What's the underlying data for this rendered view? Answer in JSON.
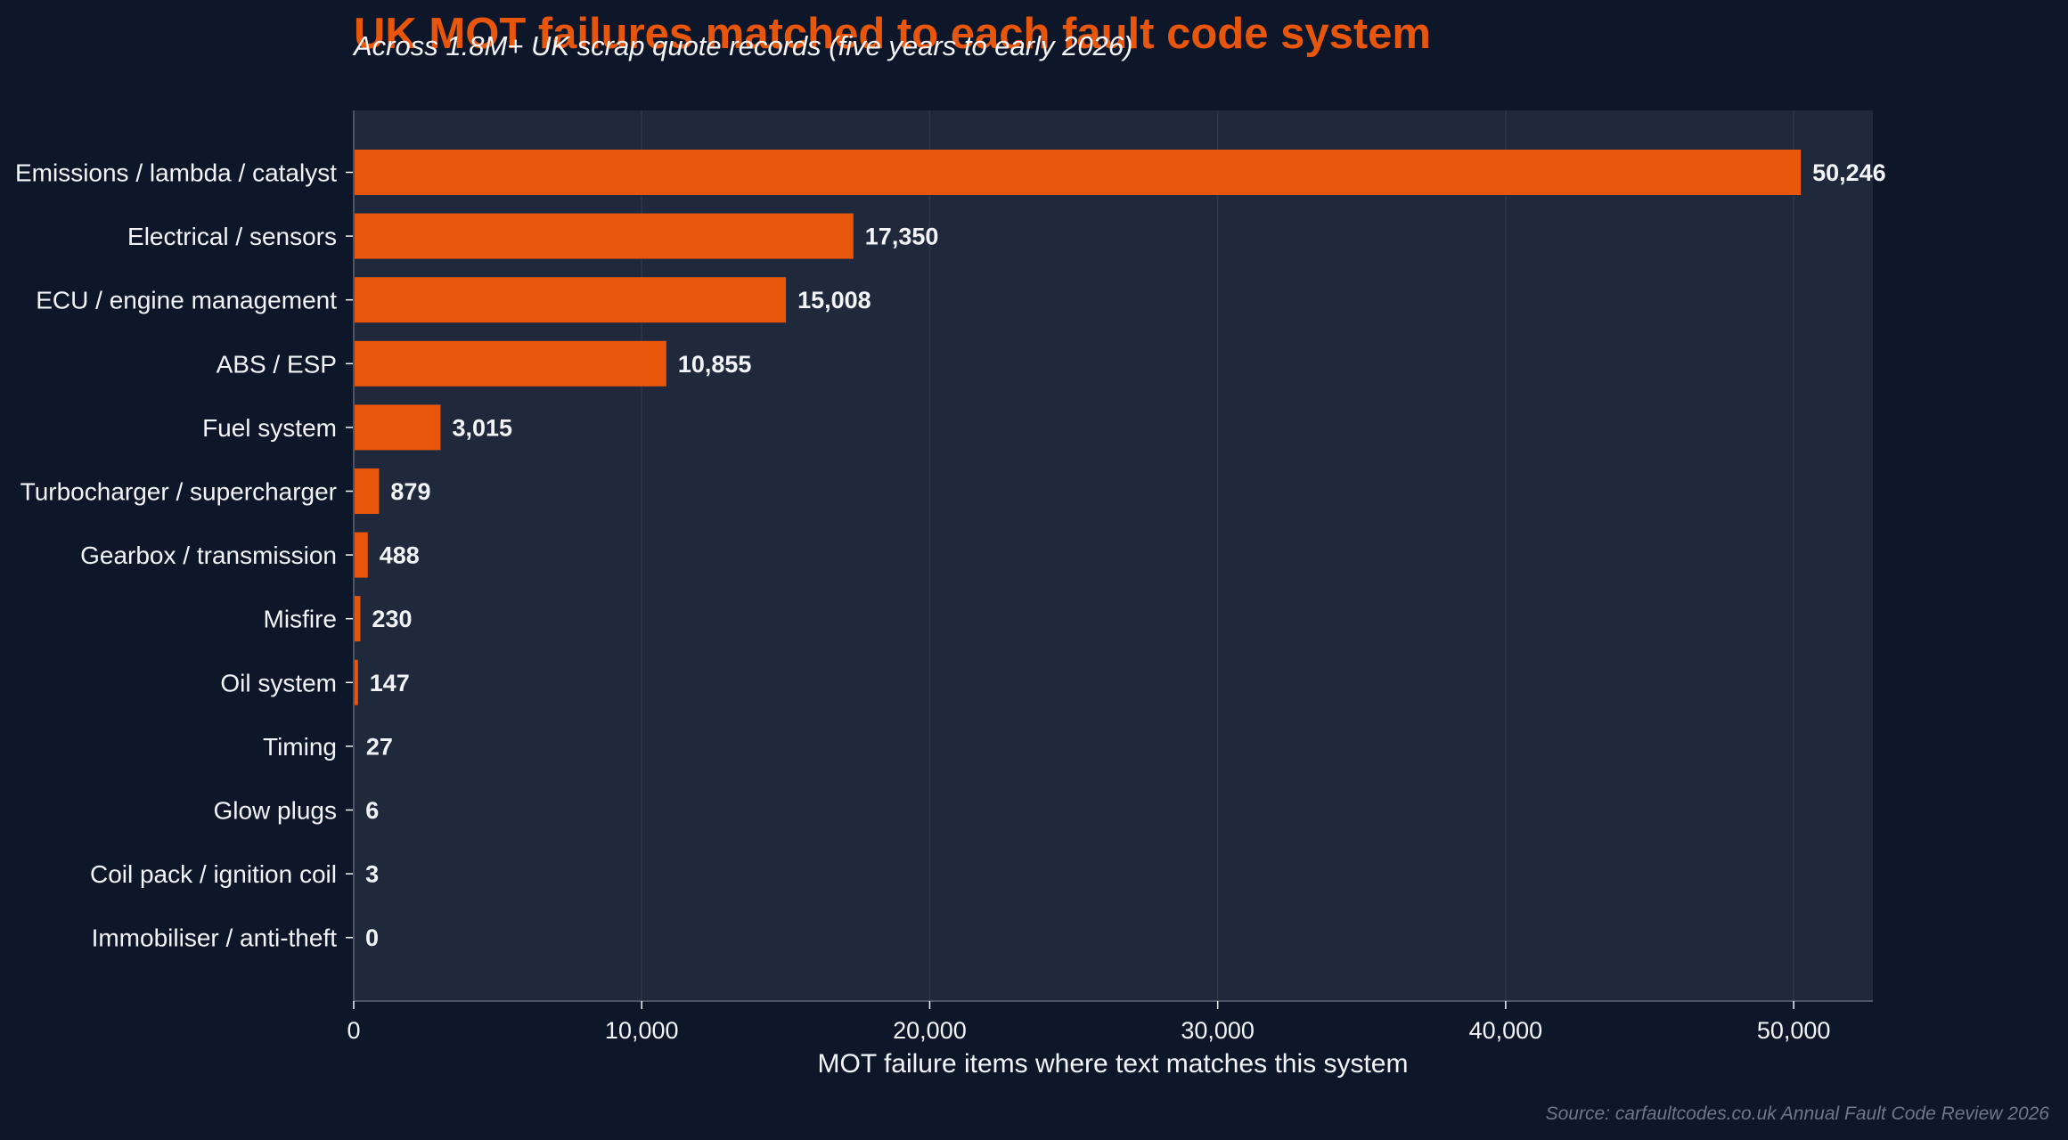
{
  "chart_data": {
    "type": "bar",
    "orientation": "horizontal",
    "title": "UK MOT failures matched to each fault code system",
    "subtitle": "Across 1.8M+ UK scrap quote records (five years to early 2026)",
    "xlabel": "MOT failure items where text matches this system",
    "ylabel": "",
    "xlim": [
      0,
      52750
    ],
    "xticks": [
      0,
      10000,
      20000,
      30000,
      40000,
      50000
    ],
    "xtick_labels": [
      "0",
      "10,000",
      "20,000",
      "30,000",
      "40,000",
      "50,000"
    ],
    "grid": "vertical",
    "categories": [
      "Emissions / lambda / catalyst",
      "Electrical / sensors",
      "ECU / engine management",
      "ABS / ESP",
      "Fuel system",
      "Turbocharger / supercharger",
      "Gearbox / transmission",
      "Misfire",
      "Oil system",
      "Timing",
      "Glow plugs",
      "Coil pack / ignition coil",
      "Immobiliser / anti-theft"
    ],
    "values": [
      50246,
      17350,
      15008,
      10855,
      3015,
      879,
      488,
      230,
      147,
      27,
      6,
      3,
      0
    ],
    "value_labels": [
      "50,246",
      "17,350",
      "15,008",
      "10,855",
      "3,015",
      "879",
      "488",
      "230",
      "147",
      "27",
      "6",
      "3",
      "0"
    ],
    "source": "Source: carfaultcodes.co.uk Annual Fault Code Review 2026"
  },
  "colors": {
    "page_background": "#0e1729",
    "plot_background": "#1f293b",
    "bar": "#e8560c",
    "title": "#e8560c",
    "text": "#f2f4f8",
    "source_text": "#6e7687",
    "grid": "#2d3748",
    "axis": "#4a5466"
  }
}
